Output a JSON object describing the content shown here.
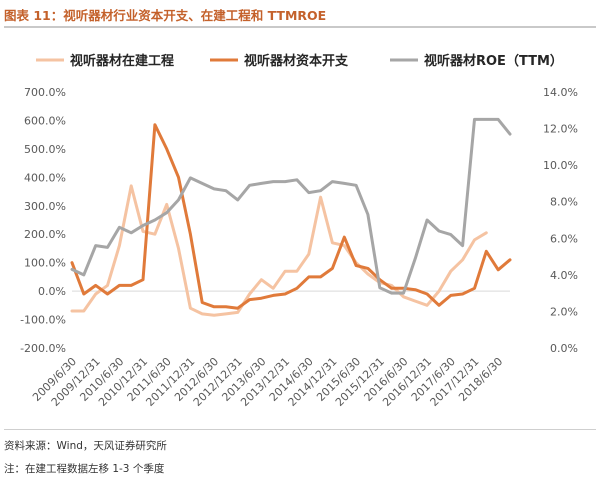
{
  "header": {
    "title": "图表 11：视听器材行业资本开支、在建工程和 TTMROE"
  },
  "footer": {
    "source": "资料来源：Wind，天风证券研究所",
    "note": "注：在建工程数据左移 1-3 个季度"
  },
  "chart_data": {
    "type": "line",
    "legend_position": "top",
    "grid": false,
    "x_tick_labels": [
      "2009/6/30",
      "2009/12/31",
      "2010/6/30",
      "2010/12/31",
      "2011/6/30",
      "2011/12/31",
      "2012/6/30",
      "2012/12/31",
      "2013/6/30",
      "2013/12/31",
      "2014/6/30",
      "2014/12/31",
      "2015/6/30",
      "2015/12/31",
      "2016/6/30",
      "2016/12/31",
      "2017/6/30",
      "2017/12/31",
      "2018/6/30"
    ],
    "y_left_ticks": [
      "700.0%",
      "600.0%",
      "500.0%",
      "400.0%",
      "300.0%",
      "200.0%",
      "100.0%",
      "0.0%",
      "-100.0%",
      "-200.0%"
    ],
    "y_right_ticks": [
      "14.0%",
      "12.0%",
      "10.0%",
      "8.0%",
      "6.0%",
      "4.0%",
      "2.0%",
      "0.0%"
    ],
    "ylim_left": [
      -200,
      700
    ],
    "ylim_right": [
      0,
      14
    ],
    "series": [
      {
        "name": "视听器材在建工程",
        "axis": "left",
        "color": "#f5c3a2",
        "points": [
          [
            "2009/6/30",
            -70
          ],
          [
            "2009/9/30",
            -70
          ],
          [
            "2009/12/31",
            -10
          ],
          [
            "2010/3/31",
            20
          ],
          [
            "2010/6/30",
            160
          ],
          [
            "2010/9/30",
            370
          ],
          [
            "2010/12/31",
            210
          ],
          [
            "2011/3/31",
            200
          ],
          [
            "2011/6/30",
            305
          ],
          [
            "2011/9/30",
            150
          ],
          [
            "2011/12/31",
            -60
          ],
          [
            "2012/3/31",
            -80
          ],
          [
            "2012/6/30",
            -85
          ],
          [
            "2012/9/30",
            -80
          ],
          [
            "2012/12/31",
            -75
          ],
          [
            "2013/3/31",
            -10
          ],
          [
            "2013/6/30",
            40
          ],
          [
            "2013/9/30",
            10
          ],
          [
            "2013/12/31",
            70
          ],
          [
            "2014/3/31",
            70
          ],
          [
            "2014/6/30",
            130
          ],
          [
            "2014/9/30",
            330
          ],
          [
            "2014/12/31",
            170
          ],
          [
            "2015/3/31",
            160
          ],
          [
            "2015/6/30",
            100
          ],
          [
            "2015/9/30",
            60
          ],
          [
            "2015/12/31",
            30
          ],
          [
            "2016/3/31",
            20
          ],
          [
            "2016/6/30",
            -20
          ],
          [
            "2016/9/30",
            -35
          ],
          [
            "2016/12/31",
            -50
          ],
          [
            "2017/3/31",
            0
          ],
          [
            "2017/6/30",
            70
          ],
          [
            "2017/9/30",
            110
          ],
          [
            "2017/12/31",
            180
          ],
          [
            "2018/3/31",
            205
          ]
        ]
      },
      {
        "name": "视听器材资本开支",
        "axis": "left",
        "color": "#e07a3a",
        "points": [
          [
            "2009/6/30",
            100
          ],
          [
            "2009/9/30",
            -10
          ],
          [
            "2009/12/31",
            20
          ],
          [
            "2010/3/31",
            -10
          ],
          [
            "2010/6/30",
            20
          ],
          [
            "2010/9/30",
            20
          ],
          [
            "2010/12/31",
            40
          ],
          [
            "2011/3/31",
            585
          ],
          [
            "2011/6/30",
            500
          ],
          [
            "2011/9/30",
            400
          ],
          [
            "2011/12/31",
            200
          ],
          [
            "2012/3/31",
            -40
          ],
          [
            "2012/6/30",
            -55
          ],
          [
            "2012/9/30",
            -55
          ],
          [
            "2012/12/31",
            -60
          ],
          [
            "2013/3/31",
            -30
          ],
          [
            "2013/6/30",
            -25
          ],
          [
            "2013/9/30",
            -15
          ],
          [
            "2013/12/31",
            -10
          ],
          [
            "2014/3/31",
            10
          ],
          [
            "2014/6/30",
            50
          ],
          [
            "2014/9/30",
            50
          ],
          [
            "2014/12/31",
            80
          ],
          [
            "2015/3/31",
            190
          ],
          [
            "2015/6/30",
            90
          ],
          [
            "2015/9/30",
            80
          ],
          [
            "2015/12/31",
            40
          ],
          [
            "2016/3/31",
            10
          ],
          [
            "2016/6/30",
            10
          ],
          [
            "2016/9/30",
            5
          ],
          [
            "2016/12/31",
            -10
          ],
          [
            "2017/3/31",
            -50
          ],
          [
            "2017/6/30",
            -15
          ],
          [
            "2017/9/30",
            -10
          ],
          [
            "2017/12/31",
            10
          ],
          [
            "2018/3/31",
            140
          ],
          [
            "2018/6/30",
            75
          ],
          [
            "2018/9/30",
            110
          ]
        ]
      },
      {
        "name": "视听器材ROE（TTM）",
        "axis": "right",
        "color": "#a6a6a6",
        "points": [
          [
            "2009/6/30",
            4.3
          ],
          [
            "2009/9/30",
            4.0
          ],
          [
            "2009/12/31",
            5.6
          ],
          [
            "2010/3/31",
            5.5
          ],
          [
            "2010/6/30",
            6.6
          ],
          [
            "2010/9/30",
            6.3
          ],
          [
            "2010/12/31",
            6.7
          ],
          [
            "2011/3/31",
            7.0
          ],
          [
            "2011/6/30",
            7.4
          ],
          [
            "2011/9/30",
            8.1
          ],
          [
            "2011/12/31",
            9.3
          ],
          [
            "2012/3/31",
            9.0
          ],
          [
            "2012/6/30",
            8.7
          ],
          [
            "2012/9/30",
            8.6
          ],
          [
            "2012/12/31",
            8.1
          ],
          [
            "2013/3/31",
            8.9
          ],
          [
            "2013/6/30",
            9.0
          ],
          [
            "2013/9/30",
            9.1
          ],
          [
            "2013/12/31",
            9.1
          ],
          [
            "2014/3/31",
            9.2
          ],
          [
            "2014/6/30",
            8.5
          ],
          [
            "2014/9/30",
            8.6
          ],
          [
            "2014/12/31",
            9.1
          ],
          [
            "2015/3/31",
            9.0
          ],
          [
            "2015/6/30",
            8.9
          ],
          [
            "2015/9/30",
            7.3
          ],
          [
            "2015/12/31",
            3.3
          ],
          [
            "2016/3/31",
            3.0
          ],
          [
            "2016/6/30",
            3.0
          ],
          [
            "2016/9/30",
            4.9
          ],
          [
            "2016/12/31",
            7.0
          ],
          [
            "2017/3/31",
            6.4
          ],
          [
            "2017/6/30",
            6.2
          ],
          [
            "2017/9/30",
            5.6
          ],
          [
            "2017/12/31",
            12.5
          ],
          [
            "2018/3/31",
            12.5
          ],
          [
            "2018/6/30",
            12.5
          ],
          [
            "2018/9/30",
            11.7
          ]
        ]
      }
    ]
  }
}
